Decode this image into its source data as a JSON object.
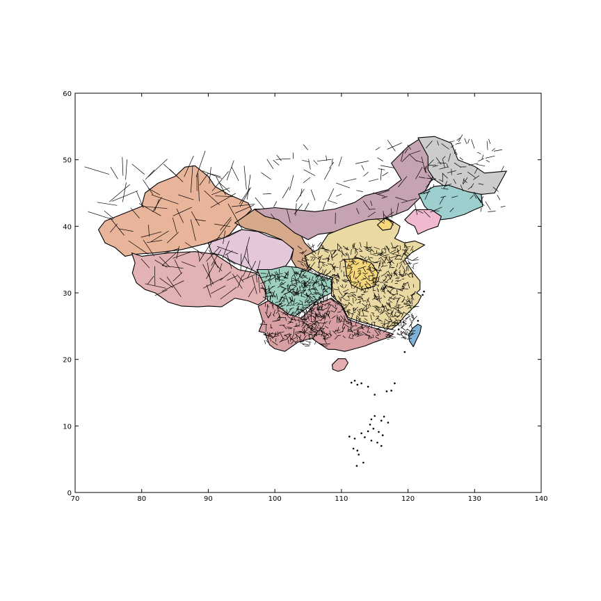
{
  "chart_data": {
    "type": "choropleth-map",
    "title": "",
    "xlabel": "",
    "ylabel": "",
    "xlim": [
      70,
      140
    ],
    "ylim": [
      0,
      60
    ],
    "x_ticks": [
      70,
      80,
      90,
      100,
      110,
      120,
      130,
      140
    ],
    "y_ticks": [
      0,
      10,
      20,
      30,
      40,
      50,
      60
    ],
    "x_tick_labels": [
      "70",
      "80",
      "90",
      "100",
      "110",
      "120",
      "130",
      "140"
    ],
    "y_tick_labels": [
      "0",
      "10",
      "20",
      "30",
      "40",
      "50",
      "60"
    ],
    "grid": false,
    "legend": "none",
    "region_colors": {
      "xinjiang": "#e8b49a",
      "tibet": "#e3b2b4",
      "qinghai": "#e5c7da",
      "gansu": "#d6a98a",
      "inner_mongolia": "#c6a3b3",
      "sichuan": "#9ccfbe",
      "southwest": "#d9a0a3",
      "central_east": "#ead9a2",
      "yellow_highlight": "#f5d77a",
      "heilongjiang": "#cccccc",
      "jilin": "#9ecfcf",
      "liaoning": "#f0b9d0",
      "taiwan": "#7fb3d5",
      "hainan": "#e3aeb0"
    }
  }
}
